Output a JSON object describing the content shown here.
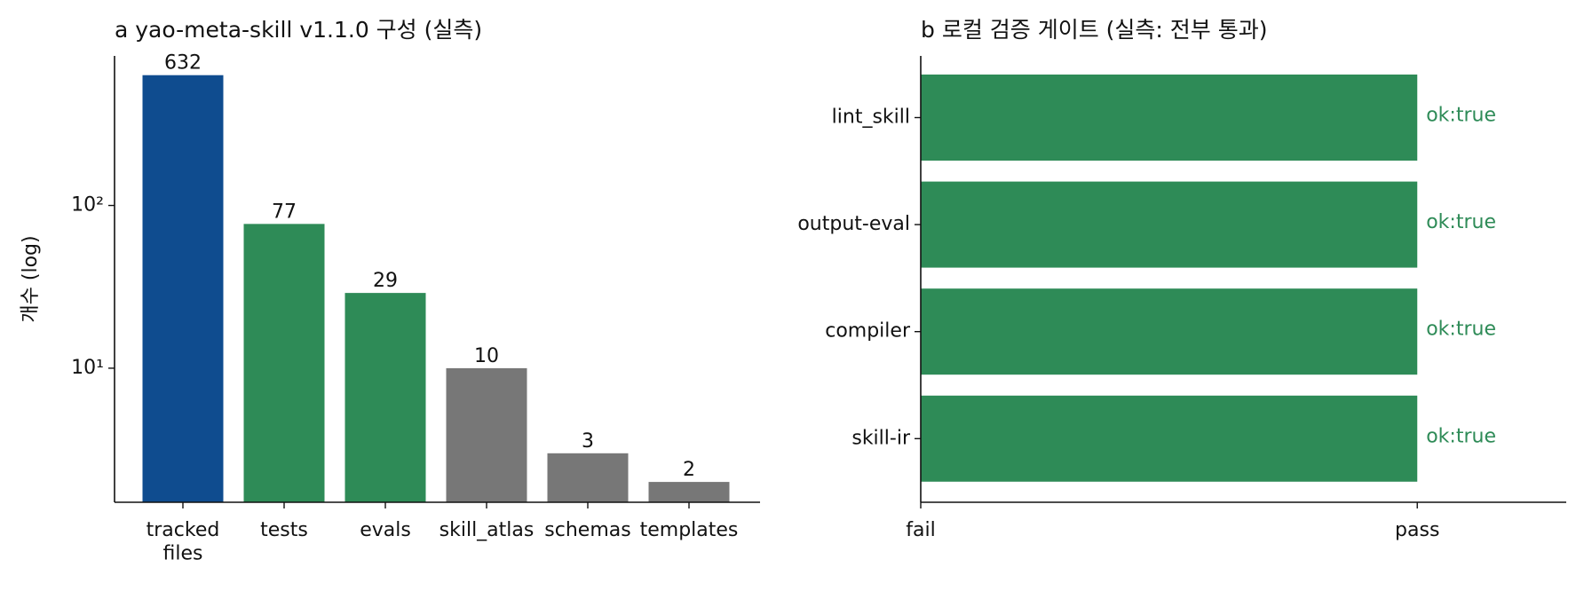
{
  "chart_data": [
    {
      "type": "bar",
      "title": "a  yao-meta-skill v1.1.0 구성 (실측)",
      "y_label": "개수 (log)",
      "y_scale": "log",
      "categories": [
        "tracked\nfiles",
        "tests",
        "evals",
        "skill_atlas",
        "schemas",
        "templates"
      ],
      "values": [
        632,
        77,
        29,
        10,
        3,
        2
      ],
      "colors": [
        "#0f4c8f",
        "#2e8b57",
        "#2e8b57",
        "#777777",
        "#777777",
        "#777777"
      ],
      "ylim": [
        1.5,
        830
      ],
      "yticks": [
        {
          "value": 10,
          "label": "10¹"
        },
        {
          "value": 100,
          "label": "10²"
        }
      ]
    },
    {
      "type": "barh",
      "title": "b  로컬 검증 게이트 (실측: 전부 통과)",
      "categories": [
        "lint_skill",
        "output-eval",
        "compiler",
        "skill-ir"
      ],
      "values": [
        1,
        1,
        1,
        1
      ],
      "value_labels": [
        "ok:true",
        "ok:true",
        "ok:true",
        "ok:true"
      ],
      "color": "#2e8b57",
      "xlim": [
        0,
        1.3
      ],
      "xticks": [
        {
          "value": 0,
          "label": "fail"
        },
        {
          "value": 1,
          "label": "pass"
        }
      ]
    }
  ]
}
